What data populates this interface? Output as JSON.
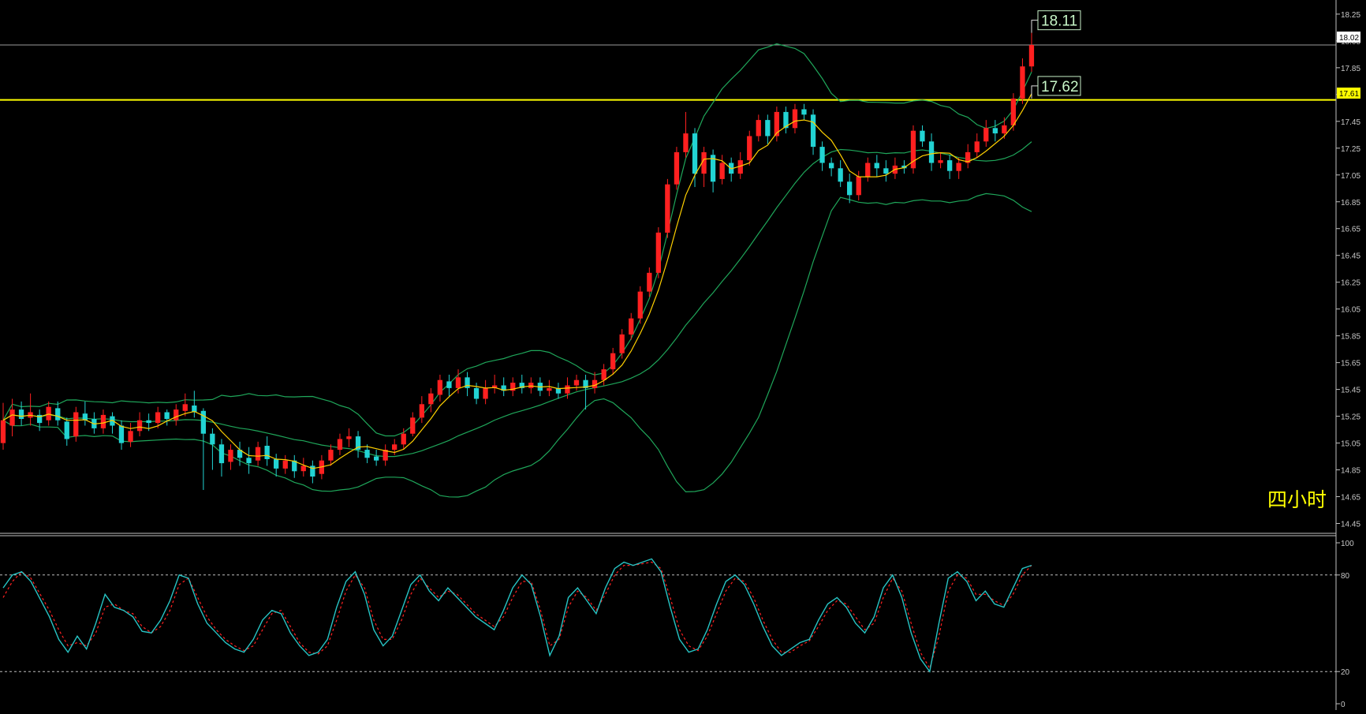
{
  "timeframe_label": "四小时",
  "colors": {
    "background": "#000000",
    "up_candle": "#ff2020",
    "down_candle": "#22d3d3",
    "ma_line": "#ffd000",
    "bollinger": "#1fa65a",
    "horizontal_level": "#ffff00",
    "stoch_k": "#27c4c4",
    "stoch_d": "#ff2020",
    "axis_text": "#c8c8c8"
  },
  "chart_data": [
    {
      "type": "candlestick",
      "title": "",
      "ylim": [
        14.4,
        18.32
      ],
      "price_ticks": [
        "18.25",
        "18.05",
        "17.85",
        "17.65",
        "17.45",
        "17.25",
        "17.05",
        "16.85",
        "16.65",
        "16.45",
        "16.25",
        "16.05",
        "15.85",
        "15.65",
        "15.45",
        "15.25",
        "15.05",
        "14.85",
        "14.65",
        "14.45"
      ],
      "current_price_marker": "18.02",
      "level_marker": "17.61",
      "level_price": 17.61,
      "current_price": 18.02,
      "annotations": [
        {
          "text": "18.11",
          "price": 18.11,
          "kind": "high"
        },
        {
          "text": "17.62",
          "price": 17.62,
          "kind": "high"
        }
      ],
      "candles": [
        [
          15.05,
          15.22,
          15.35,
          15.0
        ],
        [
          15.18,
          15.3,
          15.38,
          15.1
        ],
        [
          15.3,
          15.23,
          15.36,
          15.18
        ],
        [
          15.24,
          15.28,
          15.42,
          15.18
        ],
        [
          15.26,
          15.2,
          15.3,
          15.14
        ],
        [
          15.22,
          15.32,
          15.36,
          15.18
        ],
        [
          15.31,
          15.22,
          15.36,
          15.18
        ],
        [
          15.21,
          15.08,
          15.24,
          15.03
        ],
        [
          15.1,
          15.28,
          15.32,
          15.06
        ],
        [
          15.27,
          15.22,
          15.36,
          15.18
        ],
        [
          15.23,
          15.16,
          15.28,
          15.12
        ],
        [
          15.16,
          15.26,
          15.3,
          15.12
        ],
        [
          15.25,
          15.18,
          15.28,
          15.12
        ],
        [
          15.18,
          15.05,
          15.22,
          15.0
        ],
        [
          15.06,
          15.14,
          15.2,
          15.02
        ],
        [
          15.14,
          15.22,
          15.28,
          15.1
        ],
        [
          15.22,
          15.2,
          15.27,
          15.14
        ],
        [
          15.2,
          15.28,
          15.32,
          15.16
        ],
        [
          15.28,
          15.23,
          15.3,
          15.18
        ],
        [
          15.22,
          15.3,
          15.34,
          15.18
        ],
        [
          15.29,
          15.34,
          15.42,
          15.25
        ],
        [
          15.33,
          15.28,
          15.44,
          15.24
        ],
        [
          15.29,
          15.12,
          15.31,
          14.7
        ],
        [
          15.12,
          15.04,
          15.16,
          14.85
        ],
        [
          15.04,
          14.9,
          15.08,
          14.8
        ],
        [
          14.91,
          15.0,
          15.04,
          14.85
        ],
        [
          15.0,
          14.94,
          15.06,
          14.88
        ],
        [
          14.94,
          14.9,
          15.02,
          14.82
        ],
        [
          14.92,
          15.02,
          15.06,
          14.88
        ],
        [
          15.03,
          14.93,
          15.1,
          14.88
        ],
        [
          14.93,
          14.86,
          14.97,
          14.8
        ],
        [
          14.86,
          14.92,
          14.96,
          14.82
        ],
        [
          14.92,
          14.84,
          14.96,
          14.79
        ],
        [
          14.84,
          14.88,
          14.94,
          14.8
        ],
        [
          14.88,
          14.8,
          14.92,
          14.75
        ],
        [
          14.82,
          14.92,
          14.96,
          14.78
        ],
        [
          14.92,
          15.0,
          15.04,
          14.88
        ],
        [
          15.0,
          15.08,
          15.12,
          14.96
        ],
        [
          15.08,
          15.1,
          15.16,
          15.02
        ],
        [
          15.1,
          15.0,
          15.14,
          14.94
        ],
        [
          15.0,
          14.94,
          15.04,
          14.9
        ],
        [
          14.95,
          14.92,
          15.0,
          14.88
        ],
        [
          14.92,
          15.0,
          15.04,
          14.88
        ],
        [
          15.0,
          15.04,
          15.08,
          14.96
        ],
        [
          15.04,
          15.12,
          15.16,
          15.0
        ],
        [
          15.12,
          15.24,
          15.28,
          15.1
        ],
        [
          15.24,
          15.34,
          15.4,
          15.2
        ],
        [
          15.34,
          15.42,
          15.46,
          15.28
        ],
        [
          15.41,
          15.52,
          15.56,
          15.36
        ],
        [
          15.51,
          15.46,
          15.56,
          15.4
        ],
        [
          15.46,
          15.54,
          15.6,
          15.42
        ],
        [
          15.54,
          15.46,
          15.58,
          15.4
        ],
        [
          15.46,
          15.38,
          15.5,
          15.34
        ],
        [
          15.38,
          15.46,
          15.52,
          15.34
        ],
        [
          15.46,
          15.48,
          15.56,
          15.42
        ],
        [
          15.48,
          15.44,
          15.54,
          15.4
        ],
        [
          15.44,
          15.5,
          15.54,
          15.4
        ],
        [
          15.5,
          15.46,
          15.56,
          15.42
        ],
        [
          15.46,
          15.5,
          15.54,
          15.42
        ],
        [
          15.5,
          15.44,
          15.54,
          15.4
        ],
        [
          15.44,
          15.46,
          15.52,
          15.4
        ],
        [
          15.46,
          15.42,
          15.5,
          15.38
        ],
        [
          15.42,
          15.48,
          15.54,
          15.38
        ],
        [
          15.48,
          15.52,
          15.56,
          15.44
        ],
        [
          15.52,
          15.46,
          15.56,
          15.3
        ],
        [
          15.46,
          15.52,
          15.58,
          15.42
        ],
        [
          15.52,
          15.6,
          15.64,
          15.48
        ],
        [
          15.6,
          15.72,
          15.76,
          15.56
        ],
        [
          15.72,
          15.86,
          15.9,
          15.68
        ],
        [
          15.86,
          15.98,
          16.02,
          15.82
        ],
        [
          15.98,
          16.18,
          16.22,
          15.94
        ],
        [
          16.18,
          16.32,
          16.36,
          16.14
        ],
        [
          16.32,
          16.62,
          16.66,
          16.28
        ],
        [
          16.62,
          16.98,
          17.02,
          16.58
        ],
        [
          16.98,
          17.22,
          17.26,
          16.94
        ],
        [
          17.22,
          17.36,
          17.52,
          17.18
        ],
        [
          17.36,
          17.06,
          17.4,
          16.96
        ],
        [
          17.06,
          17.22,
          17.26,
          16.96
        ],
        [
          17.2,
          17.0,
          17.24,
          16.92
        ],
        [
          17.02,
          17.14,
          17.2,
          16.98
        ],
        [
          17.14,
          17.06,
          17.18,
          17.0
        ],
        [
          17.06,
          17.16,
          17.22,
          17.02
        ],
        [
          17.16,
          17.34,
          17.38,
          17.12
        ],
        [
          17.34,
          17.46,
          17.5,
          17.3
        ],
        [
          17.46,
          17.34,
          17.5,
          17.28
        ],
        [
          17.34,
          17.52,
          17.56,
          17.3
        ],
        [
          17.52,
          17.4,
          17.56,
          17.36
        ],
        [
          17.4,
          17.54,
          17.58,
          17.36
        ],
        [
          17.54,
          17.5,
          17.58,
          17.46
        ],
        [
          17.5,
          17.26,
          17.54,
          17.2
        ],
        [
          17.26,
          17.14,
          17.3,
          17.08
        ],
        [
          17.14,
          17.1,
          17.18,
          17.04
        ],
        [
          17.1,
          17.0,
          17.16,
          16.96
        ],
        [
          17.0,
          16.9,
          17.06,
          16.84
        ],
        [
          16.9,
          17.04,
          17.08,
          16.86
        ],
        [
          17.04,
          17.14,
          17.18,
          17.0
        ],
        [
          17.14,
          17.1,
          17.2,
          17.04
        ],
        [
          17.1,
          17.06,
          17.16,
          17.0
        ],
        [
          17.06,
          17.12,
          17.18,
          17.02
        ],
        [
          17.12,
          17.1,
          17.16,
          17.06
        ],
        [
          17.1,
          17.38,
          17.42,
          17.06
        ],
        [
          17.38,
          17.3,
          17.42,
          17.26
        ],
        [
          17.3,
          17.14,
          17.36,
          17.08
        ],
        [
          17.14,
          17.16,
          17.22,
          17.1
        ],
        [
          17.16,
          17.08,
          17.2,
          17.02
        ],
        [
          17.08,
          17.14,
          17.18,
          17.02
        ],
        [
          17.14,
          17.22,
          17.28,
          17.1
        ],
        [
          17.22,
          17.3,
          17.36,
          17.18
        ],
        [
          17.3,
          17.4,
          17.46,
          17.26
        ],
        [
          17.4,
          17.36,
          17.46,
          17.3
        ],
        [
          17.36,
          17.42,
          17.48,
          17.32
        ],
        [
          17.42,
          17.62,
          17.66,
          17.38
        ],
        [
          17.62,
          17.86,
          17.92,
          17.58
        ],
        [
          17.86,
          18.02,
          18.11,
          17.82
        ]
      ]
    },
    {
      "type": "line",
      "title": "",
      "ylim": [
        0,
        100
      ],
      "ticks": [
        "100",
        "80",
        "20",
        "0"
      ],
      "levels": [
        80,
        20
      ],
      "series": [
        {
          "values": [
            72,
            80,
            82,
            76,
            65,
            54,
            40,
            32,
            42,
            34,
            50,
            68,
            60,
            58,
            54,
            45,
            44,
            52,
            64,
            80,
            78,
            62,
            50,
            44,
            38,
            34,
            32,
            40,
            52,
            58,
            56,
            44,
            36,
            30,
            32,
            40,
            60,
            76,
            82,
            68,
            46,
            36,
            42,
            58,
            74,
            80,
            70,
            64,
            72,
            66,
            60,
            54,
            50,
            46,
            58,
            72,
            80,
            74,
            54,
            30,
            42,
            66,
            72,
            64,
            56,
            72,
            84,
            88,
            86,
            88,
            90,
            82,
            60,
            40,
            32,
            34,
            46,
            62,
            76,
            80,
            74,
            62,
            48,
            36,
            30,
            34,
            38,
            40,
            52,
            62,
            66,
            60,
            50,
            44,
            54,
            72,
            80,
            66,
            44,
            28,
            20,
            50,
            78,
            82,
            76,
            64,
            70,
            62,
            60,
            72,
            84,
            86
          ]
        },
        {
          "values": [
            66,
            76,
            82,
            78,
            68,
            58,
            46,
            36,
            38,
            36,
            44,
            60,
            62,
            58,
            56,
            48,
            44,
            48,
            58,
            74,
            78,
            66,
            54,
            46,
            40,
            36,
            33,
            36,
            46,
            56,
            58,
            48,
            38,
            32,
            31,
            36,
            52,
            70,
            80,
            72,
            52,
            40,
            40,
            52,
            68,
            78,
            72,
            66,
            70,
            68,
            62,
            56,
            52,
            48,
            54,
            66,
            76,
            76,
            58,
            36,
            40,
            60,
            70,
            66,
            58,
            68,
            80,
            86,
            86,
            87,
            88,
            84,
            66,
            46,
            36,
            33,
            42,
            56,
            70,
            78,
            76,
            66,
            52,
            40,
            32,
            32,
            36,
            39,
            48,
            58,
            64,
            62,
            54,
            46,
            50,
            66,
            78,
            70,
            50,
            32,
            22,
            42,
            70,
            80,
            78,
            68,
            68,
            64,
            61,
            68,
            80,
            86
          ]
        }
      ]
    }
  ]
}
